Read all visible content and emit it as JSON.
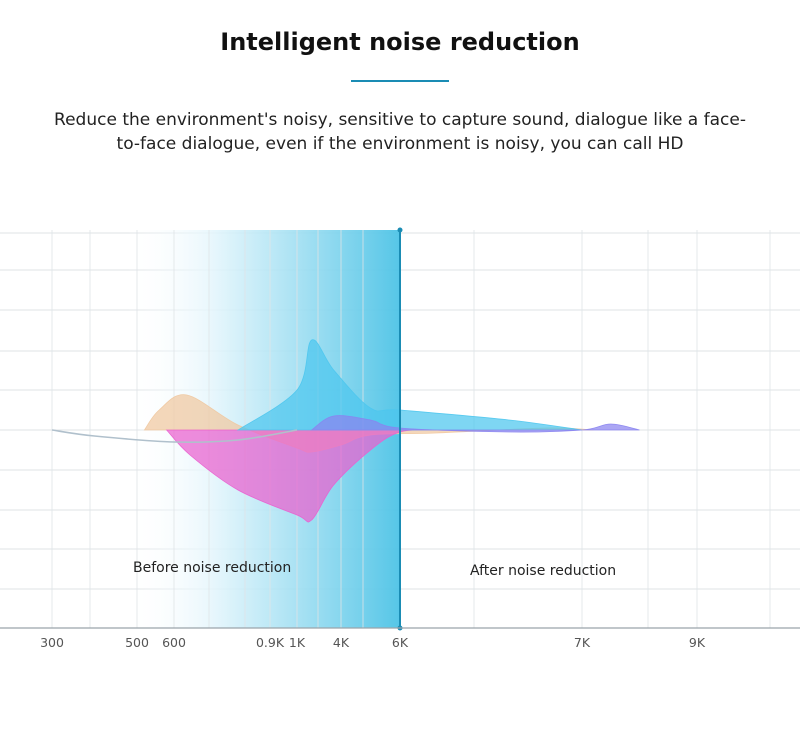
{
  "header": {
    "title": "Intelligent noise reduction",
    "description": "Reduce the environment's noisy, sensitive to capture sound, dialogue like a face-to-face dialogue, even if the environment is noisy, you can call HD",
    "accent_color": "#1a8cb4"
  },
  "chart_data": {
    "type": "area",
    "title": "",
    "xlabel": "",
    "ylabel": "",
    "x_ticks": [
      "300",
      "500",
      "600",
      "0.9K",
      "1K",
      "4K",
      "6K",
      "7K",
      "9K"
    ],
    "grid": true,
    "highlight_region": {
      "from": "500",
      "to": "6K",
      "color": "#48bfe3"
    },
    "marker_at": "6K",
    "annotations": [
      "Before noise reduction",
      "After noise reduction"
    ],
    "series": [
      {
        "color": "#f0c8a0",
        "points": [
          [
            520,
            0
          ],
          [
            560,
            20
          ],
          [
            640,
            35
          ],
          [
            800,
            5
          ],
          [
            1000,
            -18
          ],
          [
            2000,
            -22
          ],
          [
            4000,
            -15
          ],
          [
            5000,
            -5
          ],
          [
            6200,
            -3
          ],
          [
            6800,
            2
          ],
          [
            7200,
            0
          ]
        ]
      },
      {
        "color": "#ea5fcf",
        "points": [
          [
            580,
            0
          ],
          [
            650,
            -25
          ],
          [
            800,
            -60
          ],
          [
            1000,
            -85
          ],
          [
            2000,
            -90
          ],
          [
            3500,
            -55
          ],
          [
            5000,
            -20
          ],
          [
            6000,
            -2
          ],
          [
            6200,
            0
          ]
        ]
      },
      {
        "color": "#4cc6ee",
        "points": [
          [
            800,
            0
          ],
          [
            1000,
            40
          ],
          [
            2000,
            90
          ],
          [
            3500,
            60
          ],
          [
            5000,
            22
          ],
          [
            6000,
            20
          ],
          [
            6600,
            10
          ],
          [
            7000,
            0
          ]
        ]
      },
      {
        "color": "#8a84f0",
        "points": [
          [
            2000,
            0
          ],
          [
            3500,
            14
          ],
          [
            5000,
            10
          ],
          [
            6000,
            2
          ],
          [
            6600,
            -2
          ],
          [
            7000,
            0
          ],
          [
            7500,
            6
          ],
          [
            8000,
            0
          ]
        ]
      },
      {
        "color": "#b0c0cc",
        "points": [
          [
            300,
            0
          ],
          [
            400,
            -6
          ],
          [
            600,
            -12
          ],
          [
            800,
            -10
          ],
          [
            1000,
            0
          ]
        ]
      }
    ]
  }
}
